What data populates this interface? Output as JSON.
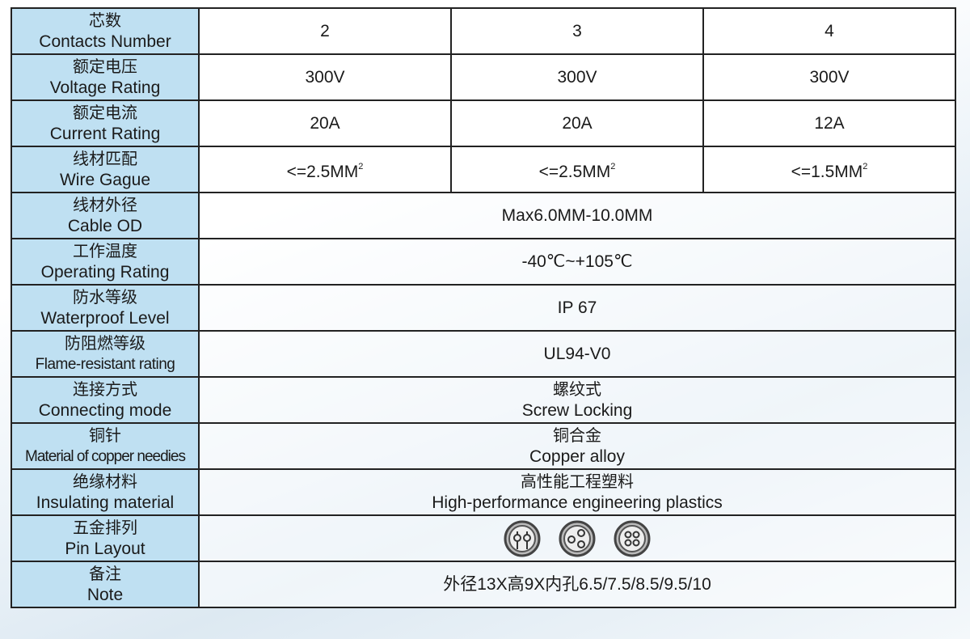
{
  "rows": [
    {
      "cn": "芯数",
      "en": "Contacts Number",
      "values": [
        "2",
        "3",
        "4"
      ]
    },
    {
      "cn": "额定电压",
      "en": "Voltage Rating",
      "values": [
        "300V",
        "300V",
        "300V"
      ]
    },
    {
      "cn": "额定电流",
      "en": "Current Rating",
      "values": [
        "20A",
        "20A",
        "12A"
      ]
    },
    {
      "cn": "线材匹配",
      "en": "Wire Gague",
      "values": [
        "<=2.5MM",
        "<=2.5MM",
        "<=1.5MM"
      ],
      "sup": "2"
    },
    {
      "cn": "线材外径",
      "en": "Cable OD",
      "value": "Max6.0MM-10.0MM"
    },
    {
      "cn": "工作温度",
      "en": "Operating Rating",
      "value": "-40℃~+105℃"
    },
    {
      "cn": "防水等级",
      "en": "Waterproof Level",
      "value": "IP 67"
    },
    {
      "cn": "防阻燃等级",
      "en": "Flame-resistant rating",
      "value": "UL94-V0"
    },
    {
      "cn": "连接方式",
      "en": "Connecting mode",
      "value_cn": "螺纹式",
      "value_en": "Screw Locking"
    },
    {
      "cn": "铜针",
      "en": "Material of copper needies",
      "value_cn": "铜合金",
      "value_en": "Copper alloy"
    },
    {
      "cn": "绝缘材料",
      "en": "Insulating material",
      "value_cn": "高性能工程塑料",
      "value_en": "High-performance engineering plastics"
    },
    {
      "cn": "五金排列",
      "en": "Pin Layout",
      "pins": [
        "2-pin-layout-icon",
        "3-pin-layout-icon",
        "4-pin-layout-icon"
      ]
    },
    {
      "cn": "备注",
      "en": "Note",
      "value": "外径13X高9X内孔6.5/7.5/8.5/9.5/10"
    }
  ],
  "colors": {
    "label_bg": "#bfe0f2",
    "border": "#222222"
  }
}
